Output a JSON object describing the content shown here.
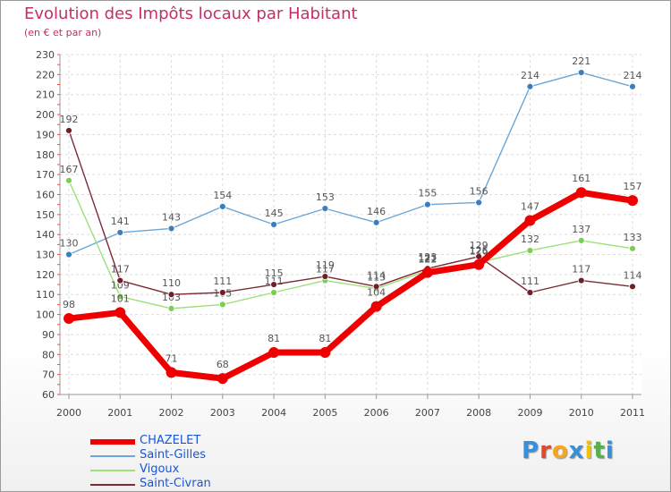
{
  "chart_data": {
    "type": "line",
    "title": "Evolution des Impôts locaux par Habitant",
    "subtitle": "(en € et par an)",
    "x": [
      "2000",
      "2001",
      "2002",
      "2003",
      "2004",
      "2005",
      "2006",
      "2007",
      "2008",
      "2009",
      "2010",
      "2011"
    ],
    "ylim": [
      60,
      230
    ],
    "yticks": [
      60,
      70,
      80,
      90,
      100,
      110,
      120,
      130,
      140,
      150,
      160,
      170,
      180,
      190,
      200,
      210,
      220,
      230
    ],
    "grid": true,
    "series": [
      {
        "name": "Saint-Gilles",
        "color": "#6aa6d6",
        "marker_color": "#3b7ec0",
        "values": [
          130,
          141,
          143,
          154,
          145,
          153,
          146,
          155,
          156,
          214,
          221,
          214
        ],
        "labels": [
          "130",
          "141",
          "143",
          "154",
          "145",
          "153",
          "146",
          "155",
          "156",
          "214",
          "221",
          "214"
        ]
      },
      {
        "name": "Vigoux",
        "color": "#9de07a",
        "marker_color": "#7ccc55",
        "values": [
          167,
          109,
          103,
          105,
          111,
          117,
          113,
          122,
          126,
          132,
          137,
          133
        ],
        "labels": [
          "167",
          "109",
          "103",
          "105",
          "111",
          "117",
          "113",
          "122",
          "126",
          "132",
          "137",
          "133"
        ]
      },
      {
        "name": "Saint-Civran",
        "color": "#7a2b34",
        "marker_color": "#6e1f28",
        "values": [
          192,
          117,
          110,
          111,
          115,
          119,
          114,
          123,
          129,
          111,
          117,
          114
        ],
        "labels": [
          "192",
          "117",
          "110",
          "111",
          "115",
          "119",
          "114",
          "123",
          "129",
          "111",
          "117",
          "114"
        ]
      },
      {
        "name": "CHAZELET",
        "color": "#ee0000",
        "marker_color": "#ee0000",
        "values": [
          98,
          101,
          71,
          68,
          81,
          81,
          104,
          121,
          125,
          147,
          161,
          157
        ],
        "labels": [
          "98",
          "101",
          "71",
          "68",
          "81",
          "81",
          "104",
          "121",
          "125",
          "147",
          "161",
          "157"
        ]
      }
    ],
    "legend": [
      "CHAZELET",
      "Saint-Gilles",
      "Vigoux",
      "Saint-Civran"
    ],
    "legend_position": "bottom-left"
  },
  "logo": {
    "letters": [
      "P",
      "r",
      "o",
      "x",
      "i",
      "t",
      "i"
    ],
    "colors": [
      "#3a8fd8",
      "#e04a2a",
      "#f5a623",
      "#3a8fd8",
      "#f5c000",
      "#56b04a",
      "#3a8fd8"
    ]
  }
}
